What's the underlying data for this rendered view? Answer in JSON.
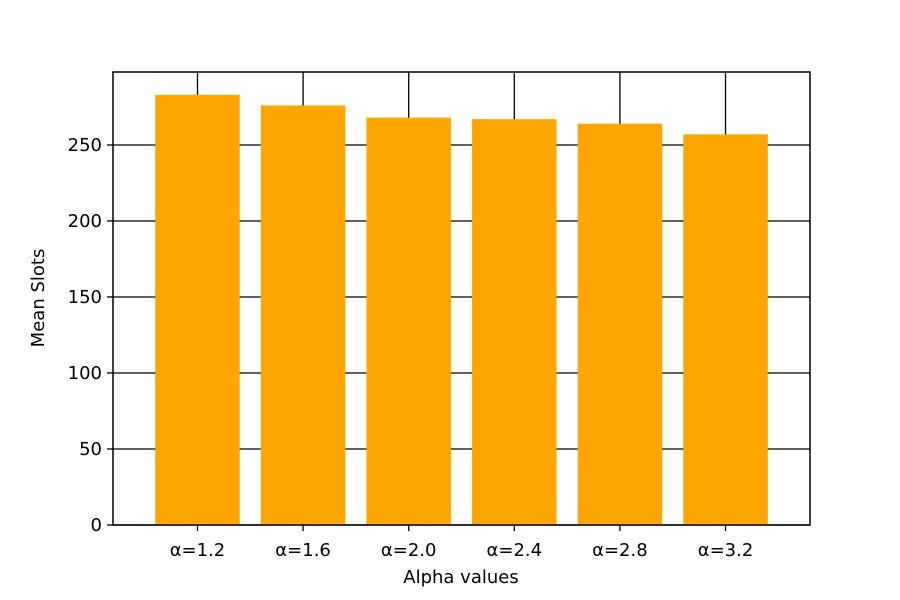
{
  "chart_data": {
    "type": "bar",
    "title": "",
    "xlabel": "Alpha values",
    "ylabel": "Mean Slots",
    "categories": [
      "α=1.2",
      "α=1.6",
      "α=2.0",
      "α=2.4",
      "α=2.8",
      "α=3.2"
    ],
    "values": [
      283,
      276,
      268,
      267,
      264,
      257
    ],
    "ylim": [
      0,
      298
    ],
    "yticks": [
      0,
      50,
      100,
      150,
      200,
      250
    ],
    "ytick_labels": [
      "0",
      "50",
      "100",
      "150",
      "200",
      "250"
    ],
    "grid": true,
    "bar_color": "#ffa500",
    "grid_color": "#000000",
    "axis_color": "#000000"
  }
}
